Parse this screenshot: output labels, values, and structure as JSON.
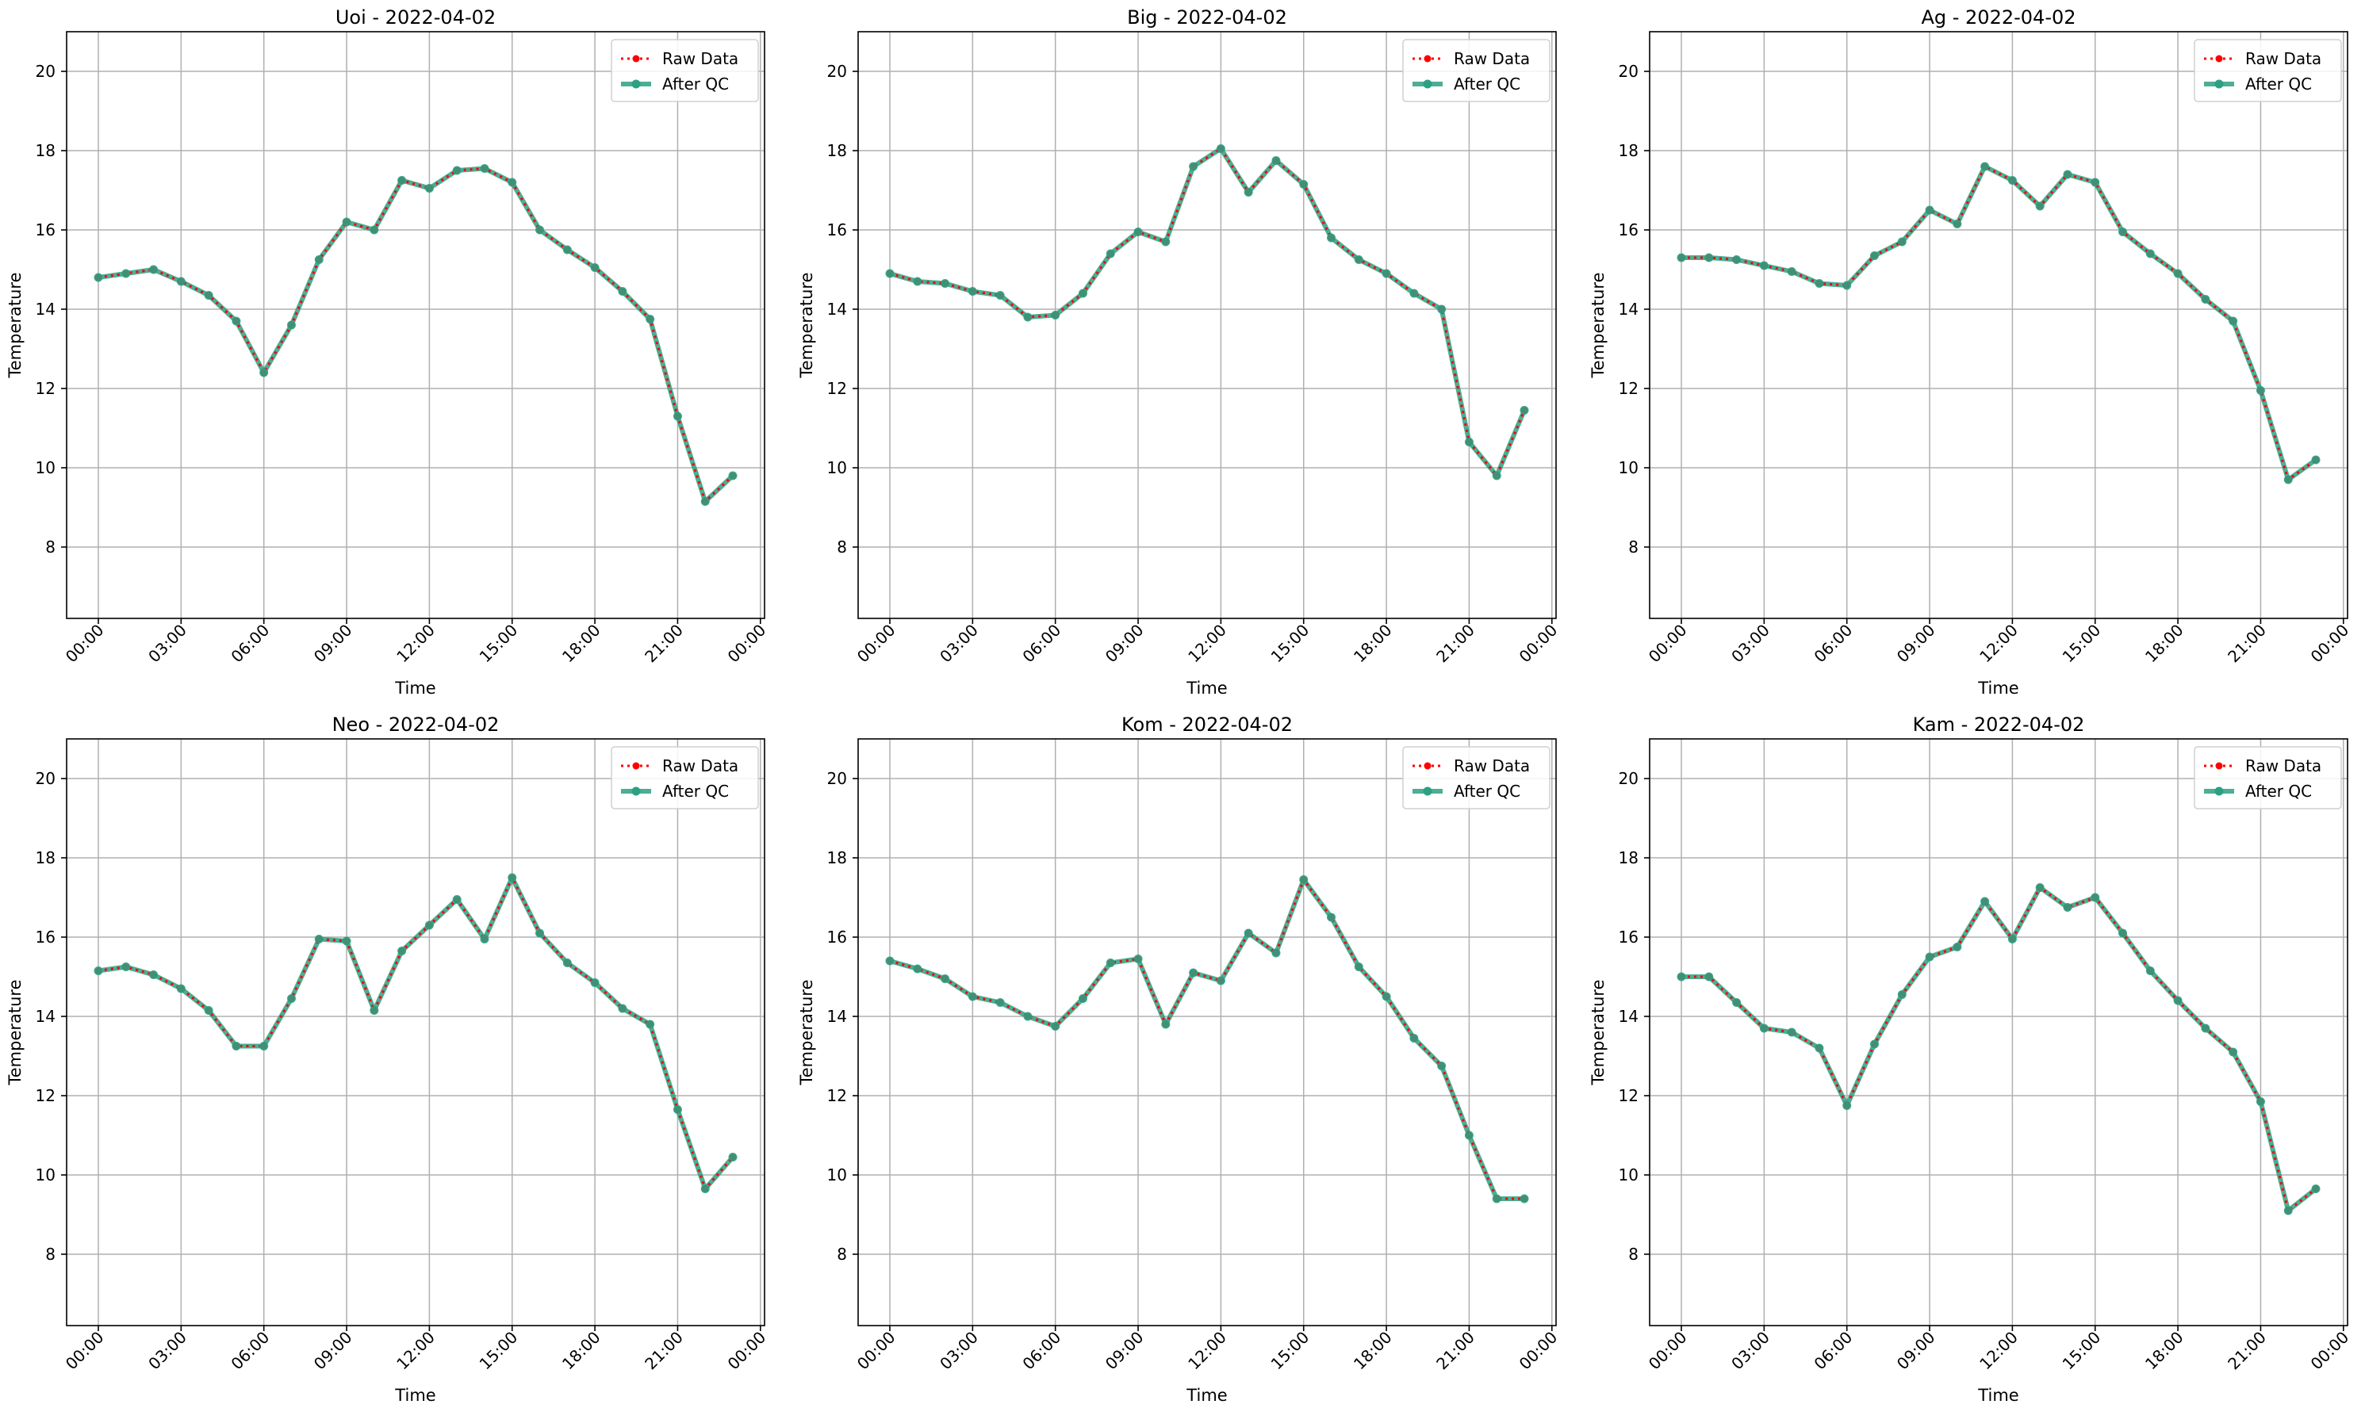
{
  "figure": {
    "panels_shared": {
      "xlabel": "Time",
      "ylabel": "Temperature",
      "ylim": [
        6.2,
        21.0
      ],
      "yticks": [
        8,
        10,
        12,
        14,
        16,
        18,
        20
      ],
      "xlim_hours": [
        -1.15,
        24.15
      ],
      "xticks_hours": [
        0,
        3,
        6,
        9,
        12,
        15,
        18,
        21,
        24
      ],
      "xtick_labels": [
        "00:00",
        "03:00",
        "06:00",
        "09:00",
        "12:00",
        "15:00",
        "18:00",
        "21:00",
        "00:00"
      ],
      "grid": true,
      "legend_placement": "top-right",
      "legend": {
        "raw": "Raw Data",
        "qc": "After QC"
      },
      "colors": {
        "raw": "#ff0000",
        "qc": "#2ca083",
        "axis": "#000000",
        "grid": "#b0b0b0"
      }
    }
  },
  "chart_data": [
    {
      "type": "line",
      "title": "Uoi - 2022-04-02",
      "x_hours": [
        0,
        1,
        2,
        3,
        4,
        5,
        6,
        7,
        8,
        9,
        10,
        11,
        12,
        13,
        14,
        15,
        16,
        17,
        18,
        19,
        20,
        21,
        22,
        23
      ],
      "series": [
        {
          "name": "Raw Data",
          "values": [
            14.8,
            14.9,
            15.0,
            14.7,
            14.35,
            13.7,
            12.4,
            13.6,
            15.25,
            16.2,
            16.0,
            17.25,
            17.05,
            17.5,
            17.55,
            17.2,
            16.0,
            15.5,
            15.05,
            14.45,
            13.75,
            11.3,
            9.15,
            9.8
          ]
        },
        {
          "name": "After QC",
          "values": [
            14.8,
            14.9,
            15.0,
            14.7,
            14.35,
            13.7,
            12.4,
            13.6,
            15.25,
            16.2,
            16.0,
            17.25,
            17.05,
            17.5,
            17.55,
            17.2,
            16.0,
            15.5,
            15.05,
            14.45,
            13.75,
            11.3,
            9.15,
            9.8
          ]
        }
      ]
    },
    {
      "type": "line",
      "title": "Big - 2022-04-02",
      "x_hours": [
        0,
        1,
        2,
        3,
        4,
        5,
        6,
        7,
        8,
        9,
        10,
        11,
        12,
        13,
        14,
        15,
        16,
        17,
        18,
        19,
        20,
        21,
        22,
        23
      ],
      "series": [
        {
          "name": "Raw Data",
          "values": [
            14.9,
            14.7,
            14.65,
            14.45,
            14.35,
            13.8,
            13.85,
            14.4,
            15.4,
            15.95,
            15.7,
            17.6,
            18.05,
            16.95,
            17.75,
            17.15,
            15.8,
            15.25,
            14.9,
            14.4,
            14.0,
            10.65,
            9.8,
            11.45
          ]
        },
        {
          "name": "After QC",
          "values": [
            14.9,
            14.7,
            14.65,
            14.45,
            14.35,
            13.8,
            13.85,
            14.4,
            15.4,
            15.95,
            15.7,
            17.6,
            18.05,
            16.95,
            17.75,
            17.15,
            15.8,
            15.25,
            14.9,
            14.4,
            14.0,
            10.65,
            9.8,
            11.45
          ]
        }
      ]
    },
    {
      "type": "line",
      "title": "Ag - 2022-04-02",
      "x_hours": [
        0,
        1,
        2,
        3,
        4,
        5,
        6,
        7,
        8,
        9,
        10,
        11,
        12,
        13,
        14,
        15,
        16,
        17,
        18,
        19,
        20,
        21,
        22,
        23
      ],
      "series": [
        {
          "name": "Raw Data",
          "values": [
            15.3,
            15.3,
            15.25,
            15.1,
            14.95,
            14.65,
            14.6,
            15.35,
            15.7,
            16.5,
            16.15,
            17.6,
            17.25,
            16.6,
            17.4,
            17.2,
            15.95,
            15.4,
            14.9,
            14.25,
            13.7,
            11.95,
            9.7,
            10.2
          ]
        },
        {
          "name": "After QC",
          "values": [
            15.3,
            15.3,
            15.25,
            15.1,
            14.95,
            14.65,
            14.6,
            15.35,
            15.7,
            16.5,
            16.15,
            17.6,
            17.25,
            16.6,
            17.4,
            17.2,
            15.95,
            15.4,
            14.9,
            14.25,
            13.7,
            11.95,
            9.7,
            10.2
          ]
        }
      ]
    },
    {
      "type": "line",
      "title": "Neo - 2022-04-02",
      "x_hours": [
        0,
        1,
        2,
        3,
        4,
        5,
        6,
        7,
        8,
        9,
        10,
        11,
        12,
        13,
        14,
        15,
        16,
        17,
        18,
        19,
        20,
        21,
        22,
        23
      ],
      "series": [
        {
          "name": "Raw Data",
          "values": [
            15.15,
            15.25,
            15.05,
            14.7,
            14.15,
            13.25,
            13.25,
            14.45,
            15.95,
            15.9,
            14.15,
            15.65,
            16.3,
            16.95,
            15.95,
            17.5,
            16.1,
            15.35,
            14.85,
            14.2,
            13.8,
            11.65,
            9.65,
            10.45
          ]
        },
        {
          "name": "After QC",
          "values": [
            15.15,
            15.25,
            15.05,
            14.7,
            14.15,
            13.25,
            13.25,
            14.45,
            15.95,
            15.9,
            14.15,
            15.65,
            16.3,
            16.95,
            15.95,
            17.5,
            16.1,
            15.35,
            14.85,
            14.2,
            13.8,
            11.65,
            9.65,
            10.45
          ]
        }
      ]
    },
    {
      "type": "line",
      "title": "Kom - 2022-04-02",
      "x_hours": [
        0,
        1,
        2,
        3,
        4,
        5,
        6,
        7,
        8,
        9,
        10,
        11,
        12,
        13,
        14,
        15,
        16,
        17,
        18,
        19,
        20,
        21,
        22,
        23
      ],
      "series": [
        {
          "name": "Raw Data",
          "values": [
            15.4,
            15.2,
            14.95,
            14.5,
            14.35,
            14.0,
            13.75,
            14.45,
            15.35,
            15.45,
            13.8,
            15.1,
            14.9,
            16.1,
            15.6,
            17.45,
            16.5,
            15.25,
            14.5,
            13.45,
            12.75,
            11.0,
            9.4,
            9.4
          ]
        },
        {
          "name": "After QC",
          "values": [
            15.4,
            15.2,
            14.95,
            14.5,
            14.35,
            14.0,
            13.75,
            14.45,
            15.35,
            15.45,
            13.8,
            15.1,
            14.9,
            16.1,
            15.6,
            17.45,
            16.5,
            15.25,
            14.5,
            13.45,
            12.75,
            11.0,
            9.4,
            9.4
          ]
        }
      ]
    },
    {
      "type": "line",
      "title": "Kam - 2022-04-02",
      "x_hours": [
        0,
        1,
        2,
        3,
        4,
        5,
        6,
        7,
        8,
        9,
        10,
        11,
        12,
        13,
        14,
        15,
        16,
        17,
        18,
        19,
        20,
        21,
        22,
        23
      ],
      "series": [
        {
          "name": "Raw Data",
          "values": [
            15.0,
            15.0,
            14.35,
            13.7,
            13.6,
            13.2,
            11.75,
            13.3,
            14.55,
            15.5,
            15.75,
            16.9,
            15.95,
            17.25,
            16.75,
            17.0,
            16.1,
            15.15,
            14.4,
            13.7,
            13.1,
            11.85,
            9.1,
            9.65
          ]
        },
        {
          "name": "After QC",
          "values": [
            15.0,
            15.0,
            14.35,
            13.7,
            13.6,
            13.2,
            11.75,
            13.3,
            14.55,
            15.5,
            15.75,
            16.9,
            15.95,
            17.25,
            16.75,
            17.0,
            16.1,
            15.15,
            14.4,
            13.7,
            13.1,
            11.85,
            9.1,
            9.65
          ]
        }
      ]
    }
  ]
}
